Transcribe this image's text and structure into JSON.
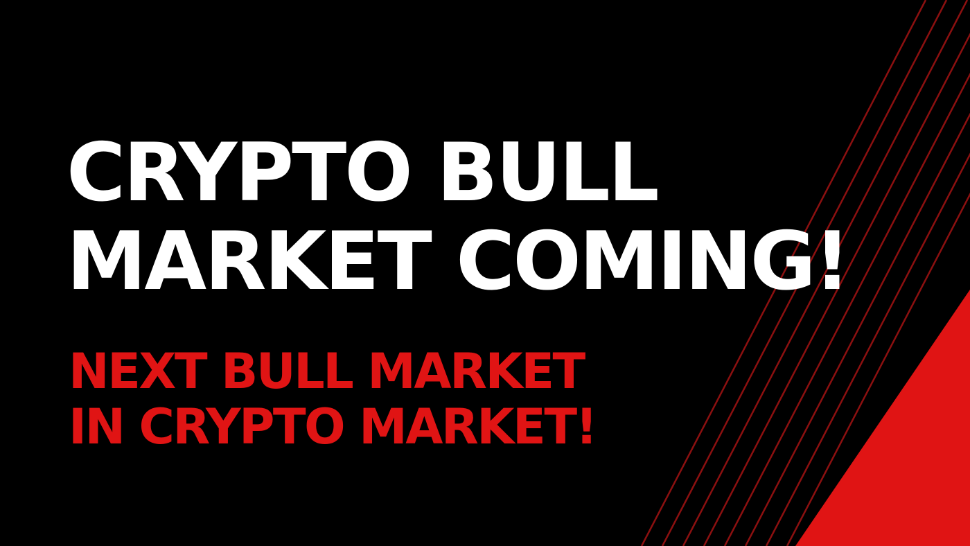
{
  "headline": {
    "line1": "CRYPTO BULL",
    "line2": "MARKET COMING!"
  },
  "subline": {
    "line1": "NEXT BULL MARKET",
    "line2": "IN CRYPTO MARKET!"
  },
  "colors": {
    "background": "#000000",
    "headline_text": "#ffffff",
    "accent_red": "#e01414",
    "stripe_red": "#8c1010"
  },
  "decor": {
    "stripe_count": 8,
    "stripe_icon": "diagonal-line-stripes",
    "corner_icon": "red-triangle-corner"
  }
}
